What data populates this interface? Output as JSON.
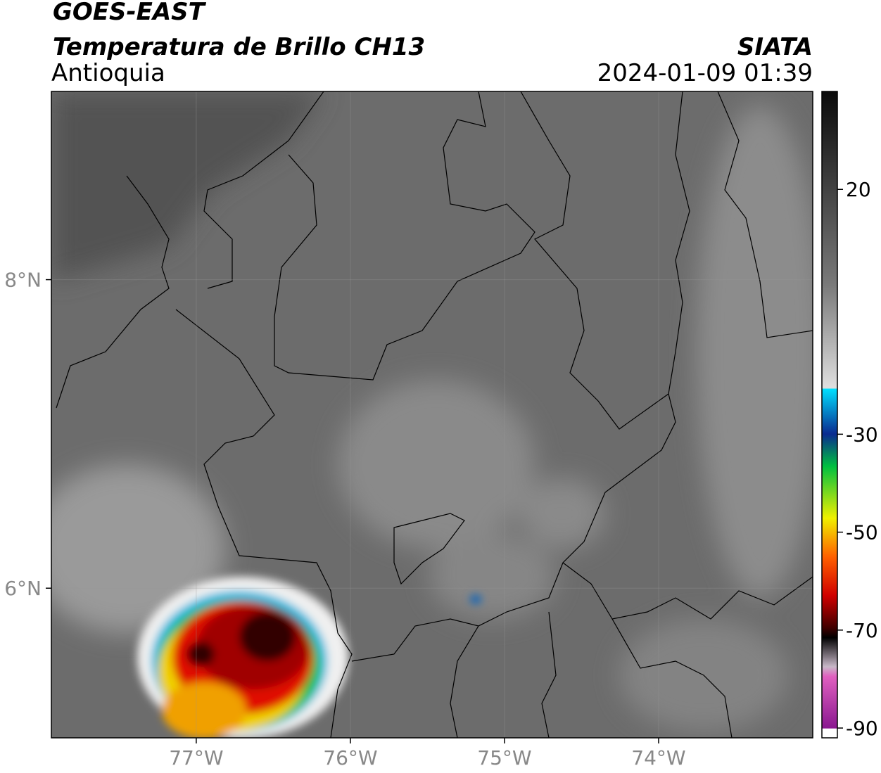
{
  "header": {
    "title": "GOES-EAST",
    "subtitle": "Temperatura de Brillo CH13",
    "region": "Antioquia",
    "source": "SIATA",
    "timestamp": "2024-01-09 01:39"
  },
  "map": {
    "xlim": [
      -77.94,
      -73.0
    ],
    "ylim": [
      5.03,
      9.22
    ],
    "xticks": [
      {
        "value": -77,
        "label": "77°W"
      },
      {
        "value": -76,
        "label": "76°W"
      },
      {
        "value": -75,
        "label": "75°W"
      },
      {
        "value": -74,
        "label": "74°W"
      }
    ],
    "yticks": [
      {
        "value": 6,
        "label": "6°N"
      },
      {
        "value": 8,
        "label": "8°N"
      }
    ],
    "grid": true
  },
  "colorbar": {
    "lim": [
      -92,
      40
    ],
    "ticks": [
      20,
      -30,
      -50,
      -70,
      -90
    ]
  }
}
